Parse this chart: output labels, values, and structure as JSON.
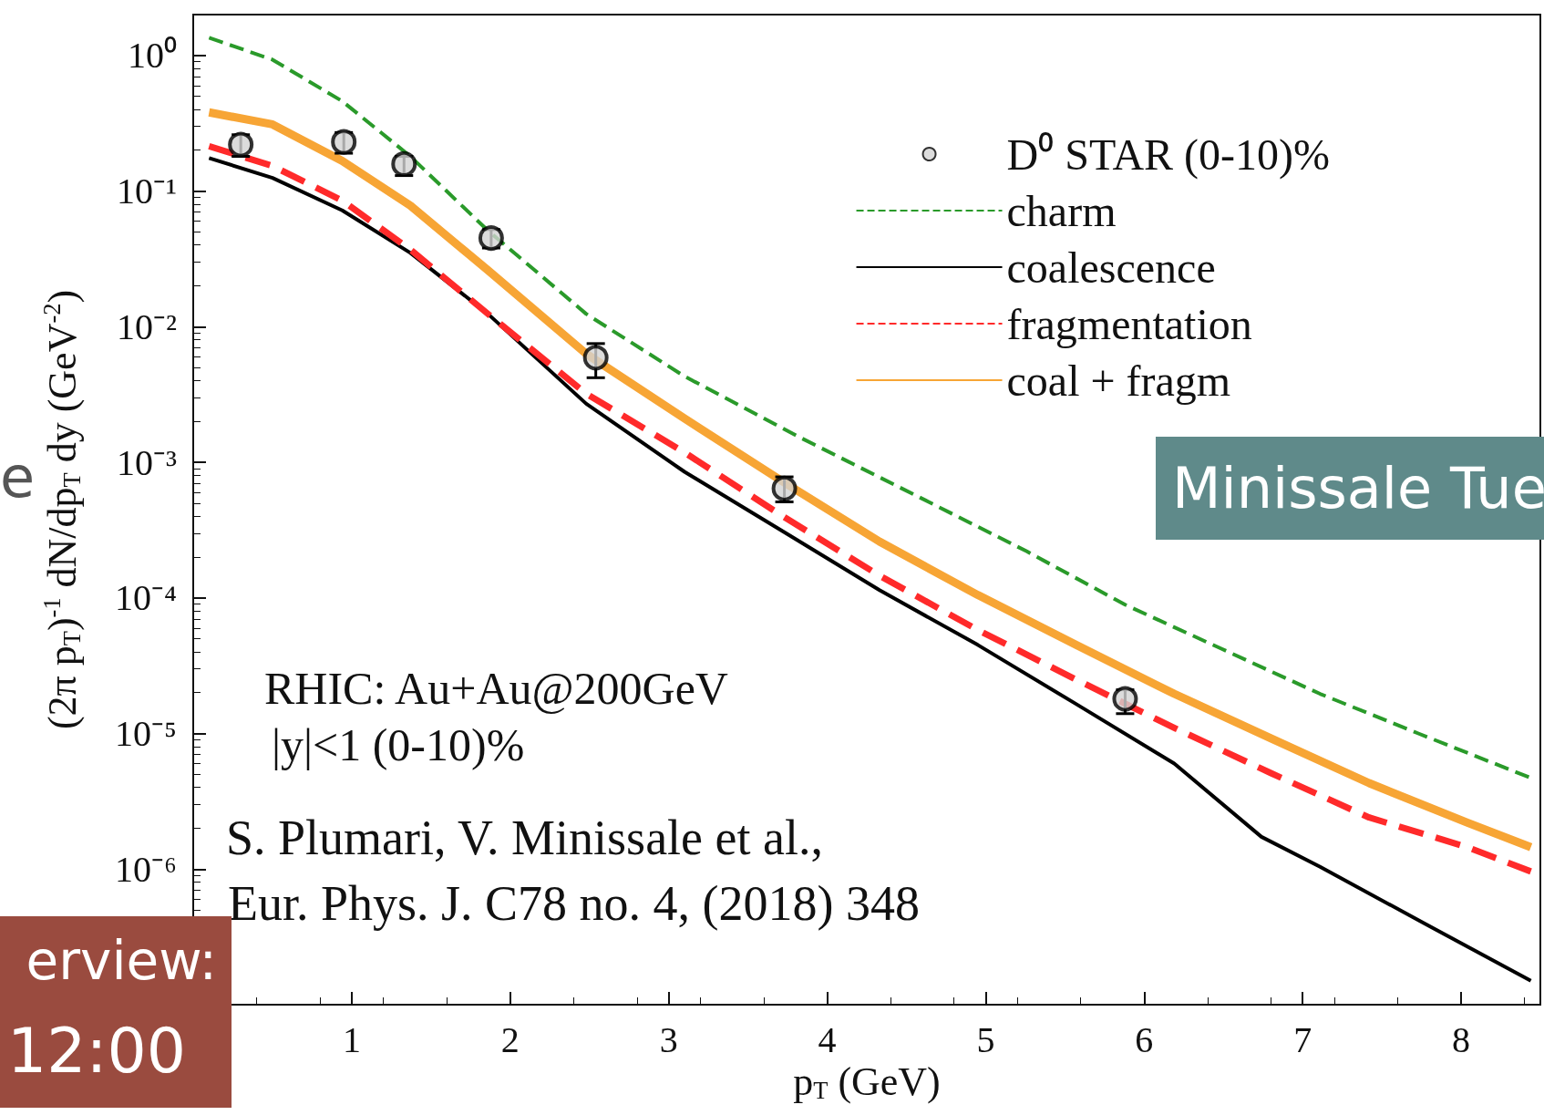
{
  "chart_data": {
    "type": "line",
    "xlabel": "p$_{T}$ (GeV)",
    "ylabel": "(2π p$_{T}$)$^{-1}$ dN/dp$_{T}$ dy (GeV$^{-2}$)",
    "log": "y",
    "xlim": [
      0,
      8.5
    ],
    "xticks": [
      1,
      2,
      3,
      4,
      5,
      6,
      7,
      8
    ],
    "ylim": [
      1e-07,
      2
    ],
    "yticks": [
      {
        "value": 1,
        "label": "10⁰"
      },
      {
        "value": 0.1,
        "label": "10⁻¹"
      },
      {
        "value": 0.01,
        "label": "10⁻²"
      },
      {
        "value": 0.001,
        "label": "10⁻³"
      },
      {
        "value": 0.0001,
        "label": "10⁻⁴"
      },
      {
        "value": 1e-05,
        "label": "10⁻⁵"
      },
      {
        "value": 1e-06,
        "label": "10⁻⁶"
      }
    ],
    "grid": false,
    "legend": "top right",
    "series": [
      {
        "name": "D⁰ STAR (0-10)%",
        "type": "scatter",
        "marker": "circle",
        "color": "#d3d3d3",
        "x": [
          0.3,
          0.95,
          1.33,
          1.88,
          2.54,
          3.73,
          5.88
        ],
        "values": [
          0.22,
          0.23,
          0.158,
          0.045,
          0.0059,
          0.00064,
          1.8e-05
        ],
        "errors": [
          [
            0.18,
            0.26
          ],
          [
            0.19,
            0.27
          ],
          [
            0.13,
            0.18
          ],
          [
            0.038,
            0.052
          ],
          [
            0.0042,
            0.0075
          ],
          [
            0.00051,
            0.00078
          ],
          [
            1.4e-05,
            2.1e-05
          ]
        ]
      },
      {
        "name": "charm",
        "line_style": "dashed",
        "color": "#2a9a2a",
        "x": [
          0.1,
          0.5,
          0.94,
          1.37,
          1.86,
          2.48,
          3.1,
          3.84,
          4.64,
          5.26,
          5.88,
          6.49,
          7.11,
          7.73,
          8.44
        ],
        "values": [
          1.35,
          0.93,
          0.46,
          0.18,
          0.051,
          0.0124,
          0.0043,
          0.0015,
          0.00051,
          0.00022,
          8.9e-05,
          4.2e-05,
          1.96e-05,
          1e-05,
          4.7e-06
        ]
      },
      {
        "name": "coalescence",
        "line_style": "solid",
        "color": "#000000",
        "x": [
          0.1,
          0.5,
          0.94,
          1.37,
          1.86,
          2.48,
          3.1,
          3.72,
          4.33,
          4.95,
          5.57,
          6.19,
          6.74,
          7.11,
          7.73,
          8.44
        ],
        "values": [
          0.175,
          0.125,
          0.072,
          0.035,
          0.0124,
          0.0027,
          0.00085,
          0.00031,
          0.000114,
          4.5e-05,
          1.65e-05,
          6e-06,
          1.73e-06,
          1.04e-06,
          4.2e-07,
          1.5e-07
        ]
      },
      {
        "name": "fragmentation",
        "line_style": "dashed",
        "color": "#ff2a2a",
        "x": [
          0.1,
          0.5,
          0.94,
          1.37,
          1.86,
          2.48,
          3.1,
          3.72,
          4.33,
          4.95,
          5.57,
          6.19,
          6.8,
          7.42,
          8.04,
          8.44
        ],
        "values": [
          0.214,
          0.153,
          0.085,
          0.037,
          0.0124,
          0.0032,
          0.00118,
          0.0004,
          0.000146,
          5.8e-05,
          2.5e-05,
          1.1e-05,
          5.1e-06,
          2.4e-06,
          1.45e-06,
          9.6e-07
        ]
      },
      {
        "name": "coal + fragm",
        "line_style": "solid",
        "color": "#f7a535",
        "x": [
          0.1,
          0.5,
          0.94,
          1.37,
          1.86,
          2.48,
          3.1,
          3.72,
          4.33,
          4.95,
          5.57,
          6.19,
          6.8,
          7.42,
          8.04,
          8.44
        ],
        "values": [
          0.38,
          0.31,
          0.167,
          0.078,
          0.026,
          0.0063,
          0.0021,
          0.00072,
          0.00026,
          0.000105,
          4.5e-05,
          1.96e-05,
          9.2e-06,
          4.3e-06,
          2.2e-06,
          1.45e-06
        ]
      }
    ],
    "annotations": [
      "RHIC: Au+Au@200GeV",
      "|y|<1 (0-10)%",
      "S. Plumari, V. Minissale et al.,",
      "Eur. Phys. J. C78 no. 4, (2018) 348",
      "Minissale Tue",
      "erview:",
      "12:00",
      "e"
    ]
  }
}
